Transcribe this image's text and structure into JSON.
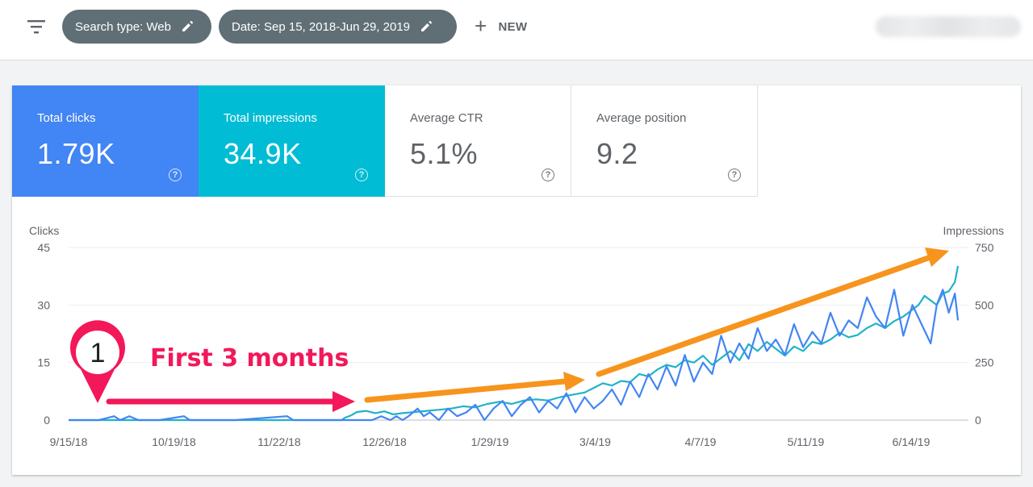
{
  "toolbar": {
    "filter_icon": "filter-list-icon",
    "chips": [
      {
        "label": "Search type: Web",
        "icon": "pencil-icon"
      },
      {
        "label": "Date: Sep 15, 2018-Jun 29, 2019",
        "icon": "pencil-icon"
      }
    ],
    "new_label": "NEW",
    "new_icon": "plus-icon"
  },
  "metrics": [
    {
      "label": "Total clicks",
      "value": "1.79K",
      "color": "#4285f4"
    },
    {
      "label": "Total impressions",
      "value": "34.9K",
      "color": "#00bcd4"
    },
    {
      "label": "Average CTR",
      "value": "5.1%"
    },
    {
      "label": "Average position",
      "value": "9.2"
    }
  ],
  "help_glyph": "?",
  "chart_data": {
    "type": "line",
    "y_left_label": "Clicks",
    "y_right_label": "Impressions",
    "y_left_ticks": [
      "45",
      "30",
      "15",
      "0"
    ],
    "y_right_ticks": [
      "750",
      "500",
      "250",
      "0"
    ],
    "y_left_range": [
      0,
      45
    ],
    "y_right_range": [
      0,
      750
    ],
    "x_ticks": [
      "9/15/18",
      "10/19/18",
      "11/22/18",
      "12/26/18",
      "1/29/19",
      "3/4/19",
      "4/7/19",
      "5/11/19",
      "6/14/19"
    ],
    "series": [
      {
        "axis": "left",
        "color": "#4285f4",
        "points": [
          [
            0,
            0
          ],
          [
            10,
            0
          ],
          [
            15,
            1
          ],
          [
            17,
            0
          ],
          [
            20,
            1
          ],
          [
            23,
            0
          ],
          [
            30,
            0
          ],
          [
            38,
            1
          ],
          [
            40,
            0
          ],
          [
            55,
            0
          ],
          [
            72,
            1
          ],
          [
            74,
            0
          ],
          [
            90,
            0
          ],
          [
            91,
            0
          ],
          [
            100,
            0
          ],
          [
            103,
            1
          ],
          [
            106,
            0
          ],
          [
            108,
            1
          ],
          [
            110,
            0
          ],
          [
            112,
            1
          ],
          [
            115,
            3
          ],
          [
            117,
            1
          ],
          [
            119,
            2
          ],
          [
            122,
            0
          ],
          [
            125,
            3
          ],
          [
            128,
            1
          ],
          [
            131,
            2
          ],
          [
            134,
            4
          ],
          [
            137,
            0
          ],
          [
            140,
            3
          ],
          [
            143,
            5
          ],
          [
            146,
            1
          ],
          [
            149,
            4
          ],
          [
            152,
            6
          ],
          [
            155,
            2
          ],
          [
            158,
            5
          ],
          [
            161,
            3
          ],
          [
            164,
            7
          ],
          [
            167,
            2
          ],
          [
            170,
            6
          ],
          [
            173,
            3
          ],
          [
            176,
            5
          ],
          [
            179,
            8
          ],
          [
            182,
            4
          ],
          [
            185,
            10
          ],
          [
            188,
            6
          ],
          [
            191,
            12
          ],
          [
            194,
            8
          ],
          [
            197,
            14
          ],
          [
            200,
            9
          ],
          [
            203,
            17
          ],
          [
            206,
            10
          ],
          [
            209,
            15
          ],
          [
            212,
            12
          ],
          [
            215,
            22
          ],
          [
            218,
            15
          ],
          [
            221,
            20
          ],
          [
            224,
            16
          ],
          [
            227,
            24
          ],
          [
            230,
            18
          ],
          [
            233,
            21
          ],
          [
            236,
            17
          ],
          [
            239,
            25
          ],
          [
            242,
            19
          ],
          [
            245,
            23
          ],
          [
            248,
            20
          ],
          [
            251,
            28
          ],
          [
            254,
            22
          ],
          [
            257,
            26
          ],
          [
            260,
            24
          ],
          [
            263,
            32
          ],
          [
            266,
            27
          ],
          [
            269,
            24
          ],
          [
            272,
            34
          ],
          [
            275,
            22
          ],
          [
            278,
            30
          ],
          [
            281,
            25
          ],
          [
            284,
            20
          ],
          [
            286,
            30
          ],
          [
            288,
            34
          ],
          [
            290,
            28
          ],
          [
            292,
            33
          ],
          [
            293,
            26
          ]
        ]
      },
      {
        "axis": "right",
        "color": "#1fb3c8",
        "points": [
          [
            0,
            0
          ],
          [
            90,
            0
          ],
          [
            91,
            10
          ],
          [
            93,
            20
          ],
          [
            95,
            35
          ],
          [
            98,
            40
          ],
          [
            101,
            30
          ],
          [
            104,
            38
          ],
          [
            107,
            25
          ],
          [
            110,
            30
          ],
          [
            114,
            35
          ],
          [
            118,
            40
          ],
          [
            122,
            45
          ],
          [
            126,
            50
          ],
          [
            130,
            60
          ],
          [
            134,
            55
          ],
          [
            138,
            70
          ],
          [
            142,
            80
          ],
          [
            146,
            70
          ],
          [
            150,
            85
          ],
          [
            154,
            90
          ],
          [
            158,
            85
          ],
          [
            162,
            100
          ],
          [
            166,
            110
          ],
          [
            170,
            120
          ],
          [
            173,
            140
          ],
          [
            176,
            160
          ],
          [
            179,
            150
          ],
          [
            182,
            170
          ],
          [
            185,
            165
          ],
          [
            188,
            200
          ],
          [
            191,
            190
          ],
          [
            194,
            220
          ],
          [
            197,
            240
          ],
          [
            200,
            230
          ],
          [
            203,
            260
          ],
          [
            206,
            250
          ],
          [
            209,
            280
          ],
          [
            212,
            240
          ],
          [
            215,
            270
          ],
          [
            218,
            300
          ],
          [
            221,
            260
          ],
          [
            224,
            330
          ],
          [
            227,
            300
          ],
          [
            230,
            340
          ],
          [
            233,
            310
          ],
          [
            236,
            280
          ],
          [
            239,
            320
          ],
          [
            242,
            300
          ],
          [
            245,
            340
          ],
          [
            248,
            330
          ],
          [
            251,
            350
          ],
          [
            254,
            380
          ],
          [
            257,
            360
          ],
          [
            260,
            370
          ],
          [
            263,
            400
          ],
          [
            266,
            420
          ],
          [
            269,
            400
          ],
          [
            272,
            430
          ],
          [
            275,
            450
          ],
          [
            278,
            480
          ],
          [
            280,
            500
          ],
          [
            282,
            540
          ],
          [
            284,
            520
          ],
          [
            286,
            500
          ],
          [
            288,
            550
          ],
          [
            290,
            560
          ],
          [
            292,
            600
          ],
          [
            293,
            670
          ]
        ]
      }
    ],
    "annotations": {
      "badge_number": "1",
      "headline": "First 3 months",
      "headline_color": "#f2185a",
      "arrow_color": "#f7941d"
    }
  }
}
